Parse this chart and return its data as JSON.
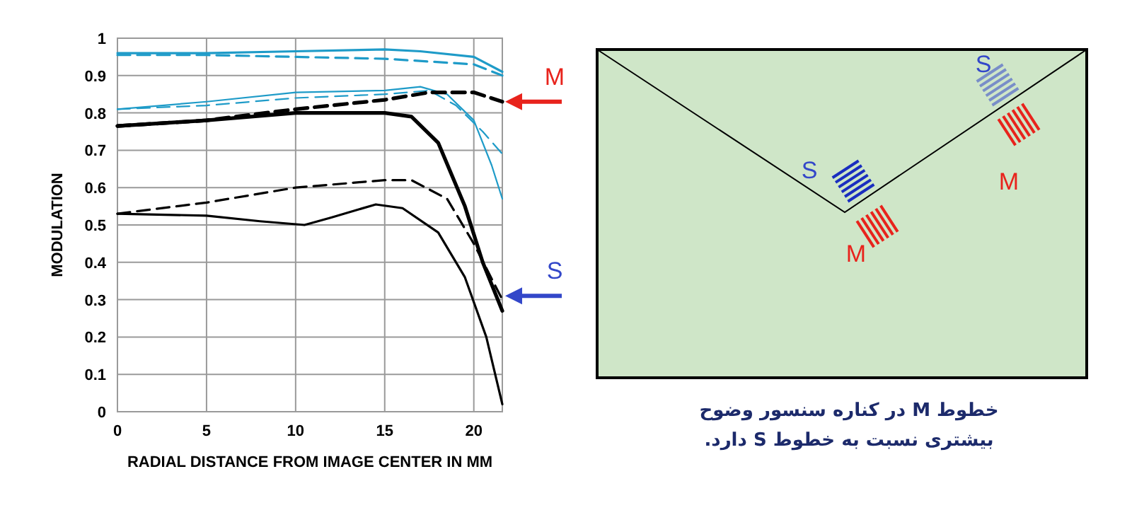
{
  "chart_data": {
    "type": "line",
    "xlabel": "RADIAL DISTANCE FROM IMAGE CENTER IN MM",
    "ylabel": "MODULATION",
    "xlim": [
      0,
      21.6
    ],
    "ylim": [
      0,
      1
    ],
    "xticks": [
      0,
      5,
      10,
      15,
      20
    ],
    "yticks": [
      0,
      0.1,
      0.2,
      0.3,
      0.4,
      0.5,
      0.6,
      0.7,
      0.8,
      0.9,
      1
    ],
    "grid": true,
    "series": [
      {
        "color": "#1e9bc8",
        "line_style": "solid",
        "x": [
          0,
          5,
          10,
          15,
          17,
          20,
          21.6
        ],
        "values": [
          0.96,
          0.96,
          0.965,
          0.97,
          0.965,
          0.95,
          0.91
        ]
      },
      {
        "color": "#1e9bc8",
        "line_style": "dashed",
        "x": [
          0,
          5,
          10,
          15,
          20,
          21.6
        ],
        "values": [
          0.955,
          0.955,
          0.95,
          0.945,
          0.93,
          0.9
        ]
      },
      {
        "color": "#1e9bc8",
        "line_style": "solid",
        "x": [
          0,
          5,
          10,
          15,
          17,
          18.5,
          20,
          21,
          21.6
        ],
        "values": [
          0.81,
          0.83,
          0.855,
          0.86,
          0.87,
          0.85,
          0.78,
          0.66,
          0.57
        ]
      },
      {
        "color": "#1e9bc8",
        "line_style": "dashed",
        "x": [
          0,
          5,
          10,
          15,
          17.5,
          19,
          20.5,
          21.6
        ],
        "values": [
          0.81,
          0.82,
          0.84,
          0.85,
          0.86,
          0.82,
          0.75,
          0.69
        ]
      },
      {
        "color": "#000000",
        "line_style": "solid",
        "x": [
          0,
          5,
          10,
          15,
          16.5,
          18,
          19.5,
          20.5,
          21.6
        ],
        "values": [
          0.765,
          0.78,
          0.8,
          0.8,
          0.79,
          0.72,
          0.55,
          0.4,
          0.27
        ]
      },
      {
        "color": "#000000",
        "line_style": "dashed",
        "x": [
          0,
          5,
          10,
          15,
          17.5,
          20,
          21.6
        ],
        "values": [
          0.765,
          0.78,
          0.81,
          0.835,
          0.855,
          0.855,
          0.83
        ]
      },
      {
        "color": "#000000",
        "line_style": "solid",
        "x": [
          0,
          5,
          8,
          10.5,
          12,
          14.5,
          16,
          18,
          19.5,
          20.7,
          21.6
        ],
        "values": [
          0.53,
          0.525,
          0.51,
          0.5,
          0.52,
          0.555,
          0.545,
          0.48,
          0.36,
          0.2,
          0.02
        ]
      },
      {
        "color": "#000000",
        "line_style": "dashed",
        "x": [
          0,
          5,
          10,
          15,
          16.5,
          18.5,
          20,
          21.6
        ],
        "values": [
          0.53,
          0.56,
          0.6,
          0.62,
          0.62,
          0.57,
          0.45,
          0.3
        ]
      }
    ],
    "annotations": [
      {
        "text": "M",
        "x": 21.6,
        "y": 0.83
      },
      {
        "text": "S",
        "x": 21.6,
        "y": 0.31
      },
      "S",
      "M",
      "S",
      "M",
      "خطوط M در کناره سنسور وضوح بیشتری نسبت به خطوط S دارد."
    ]
  }
}
